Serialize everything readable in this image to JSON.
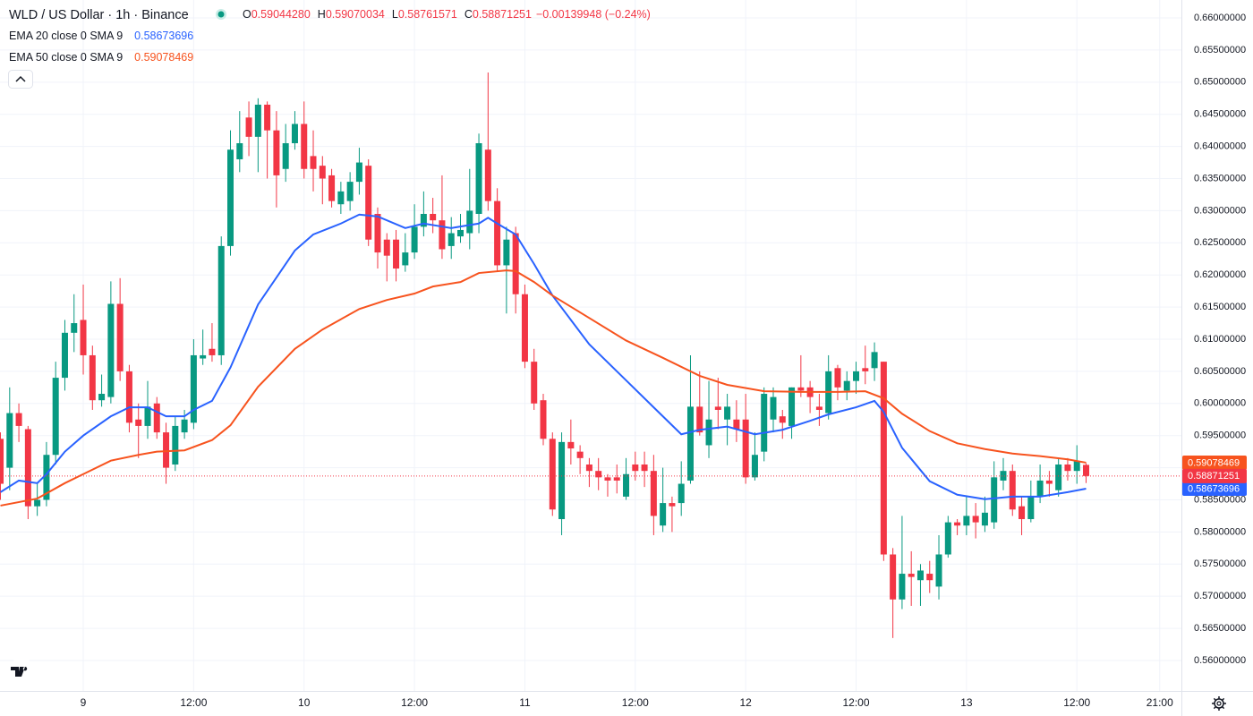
{
  "chart_data": {
    "type": "candlestick",
    "title": "WLD / US Dollar · 1h · Binance",
    "ohlc_readout": [
      {
        "key": "O",
        "text": "0.59044280"
      },
      {
        "key": "H",
        "text": "0.59070034"
      },
      {
        "key": "L",
        "text": "0.58761571"
      },
      {
        "key": "C",
        "text": "0.58871251"
      }
    ],
    "change": "−0.00139948 (−0.24%)",
    "candles": {
      "up_color": "#089981",
      "down_color": "#f23645",
      "last_close_label": "0.58871251",
      "x": [
        -9,
        -8,
        -7,
        -6,
        -5,
        -4,
        -3,
        -2,
        -1,
        0,
        1,
        2,
        3,
        4,
        5,
        6,
        7,
        8,
        9,
        10,
        11,
        12,
        13,
        14,
        15,
        16,
        17,
        18,
        19,
        20,
        21,
        22,
        23,
        24,
        25,
        26,
        27,
        28,
        29,
        30,
        31,
        32,
        33,
        34,
        35,
        36,
        37,
        38,
        39,
        40,
        41,
        42,
        43,
        44,
        45,
        46,
        47,
        48,
        49,
        50,
        51,
        52,
        53,
        54,
        55,
        56,
        57,
        58,
        59,
        60,
        61,
        62,
        63,
        64,
        65,
        66,
        67,
        68,
        69,
        70,
        71,
        72,
        73,
        74,
        75,
        76,
        77,
        78,
        79,
        80,
        81,
        82,
        83,
        84,
        85,
        86,
        87,
        88,
        89,
        90,
        91,
        92,
        93,
        94,
        95,
        96,
        97,
        98,
        99,
        100,
        101,
        102,
        103,
        104,
        105,
        106,
        107,
        108,
        109
      ],
      "open": [
        0.5945,
        0.59,
        0.5985,
        0.596,
        0.584,
        0.585,
        0.592,
        0.604,
        0.611,
        0.613,
        0.6075,
        0.6005,
        0.601,
        0.6155,
        0.605,
        0.5975,
        0.5965,
        0.6,
        0.5955,
        0.5905,
        0.5955,
        0.597,
        0.607,
        0.6085,
        0.6075,
        0.6245,
        0.638,
        0.6445,
        0.6415,
        0.6465,
        0.6425,
        0.6365,
        0.6405,
        0.6435,
        0.6385,
        0.637,
        0.6355,
        0.631,
        0.6315,
        0.6345,
        0.637,
        0.6295,
        0.6255,
        0.6255,
        0.6215,
        0.6235,
        0.6275,
        0.6295,
        0.6285,
        0.6245,
        0.626,
        0.6265,
        0.6295,
        0.6395,
        0.6315,
        0.6215,
        0.6265,
        0.617,
        0.6065,
        0.6005,
        0.5945,
        0.582,
        0.594,
        0.5925,
        0.5905,
        0.5895,
        0.5885,
        0.5885,
        0.5855,
        0.5905,
        0.5905,
        0.5895,
        0.581,
        0.5845,
        0.5845,
        0.588,
        0.5995,
        0.5935,
        0.5995,
        0.5975,
        0.5975,
        0.5975,
        0.5885,
        0.5925,
        0.5975,
        0.598,
        0.5965,
        0.6025,
        0.6025,
        0.5995,
        0.5985,
        0.6055,
        0.602,
        0.6035,
        0.6055,
        0.6055,
        0.6065,
        0.5765,
        0.5695,
        0.5735,
        0.5725,
        0.5735,
        0.5715,
        0.5765,
        0.5815,
        0.581,
        0.5825,
        0.581,
        0.5815,
        0.588,
        0.5895,
        0.584,
        0.582,
        0.5855,
        0.588,
        0.5865,
        0.5905,
        0.5895,
        0.5904428
      ],
      "high": [
        0.5955,
        0.6025,
        0.6,
        0.5965,
        0.5875,
        0.594,
        0.6065,
        0.613,
        0.617,
        0.6185,
        0.609,
        0.6045,
        0.619,
        0.6195,
        0.606,
        0.6,
        0.6035,
        0.601,
        0.597,
        0.598,
        0.599,
        0.61,
        0.6115,
        0.6125,
        0.626,
        0.6425,
        0.6455,
        0.647,
        0.6475,
        0.647,
        0.6455,
        0.6435,
        0.6455,
        0.647,
        0.6425,
        0.6385,
        0.6365,
        0.6345,
        0.636,
        0.6398,
        0.638,
        0.6305,
        0.6265,
        0.627,
        0.6265,
        0.631,
        0.633,
        0.632,
        0.6355,
        0.629,
        0.6295,
        0.6365,
        0.642,
        0.6515,
        0.6335,
        0.6275,
        0.6275,
        0.6185,
        0.6085,
        0.6015,
        0.5955,
        0.5955,
        0.5975,
        0.5935,
        0.5915,
        0.5915,
        0.589,
        0.5905,
        0.5915,
        0.5925,
        0.5925,
        0.592,
        0.59,
        0.5855,
        0.591,
        0.6075,
        0.605,
        0.6035,
        0.604,
        0.6015,
        0.6005,
        0.6015,
        0.5955,
        0.6025,
        0.6025,
        0.599,
        0.6025,
        0.6075,
        0.6035,
        0.6015,
        0.6075,
        0.606,
        0.605,
        0.6065,
        0.609,
        0.6095,
        0.6065,
        0.5775,
        0.5825,
        0.577,
        0.575,
        0.5755,
        0.5795,
        0.5825,
        0.582,
        0.5855,
        0.5845,
        0.5855,
        0.591,
        0.5915,
        0.5905,
        0.5855,
        0.588,
        0.5905,
        0.5895,
        0.5915,
        0.5915,
        0.5935,
        0.59070034
      ],
      "low": [
        0.585,
        0.5865,
        0.594,
        0.582,
        0.5825,
        0.584,
        0.5905,
        0.602,
        0.608,
        0.6045,
        0.599,
        0.5995,
        0.6,
        0.6035,
        0.5955,
        0.5915,
        0.5945,
        0.5945,
        0.5875,
        0.5895,
        0.5945,
        0.596,
        0.606,
        0.6065,
        0.606,
        0.623,
        0.636,
        0.6385,
        0.636,
        0.635,
        0.6305,
        0.6345,
        0.6395,
        0.635,
        0.633,
        0.631,
        0.6305,
        0.6295,
        0.63,
        0.6325,
        0.6245,
        0.621,
        0.619,
        0.619,
        0.6205,
        0.6225,
        0.626,
        0.6265,
        0.6225,
        0.6225,
        0.625,
        0.624,
        0.6265,
        0.63,
        0.6205,
        0.614,
        0.614,
        0.6055,
        0.599,
        0.5935,
        0.5825,
        0.5795,
        0.5905,
        0.589,
        0.587,
        0.5865,
        0.5855,
        0.586,
        0.585,
        0.588,
        0.587,
        0.5795,
        0.58,
        0.58,
        0.5825,
        0.5875,
        0.595,
        0.5915,
        0.596,
        0.5935,
        0.594,
        0.5875,
        0.588,
        0.591,
        0.5955,
        0.5945,
        0.5945,
        0.601,
        0.5985,
        0.5965,
        0.5975,
        0.6005,
        0.6005,
        0.6015,
        0.603,
        0.6035,
        0.5755,
        0.5635,
        0.568,
        0.5685,
        0.5685,
        0.5705,
        0.5695,
        0.576,
        0.5795,
        0.5795,
        0.579,
        0.58,
        0.5805,
        0.5865,
        0.5825,
        0.5795,
        0.5815,
        0.5845,
        0.5855,
        0.5855,
        0.588,
        0.5875,
        0.58761571
      ],
      "close": [
        0.5875,
        0.5985,
        0.5965,
        0.584,
        0.585,
        0.592,
        0.604,
        0.611,
        0.6125,
        0.6075,
        0.6005,
        0.6015,
        0.6155,
        0.605,
        0.597,
        0.5965,
        0.5995,
        0.5955,
        0.59,
        0.5965,
        0.5975,
        0.6075,
        0.6075,
        0.6075,
        0.6245,
        0.6395,
        0.6405,
        0.6415,
        0.6465,
        0.6425,
        0.6355,
        0.6405,
        0.6435,
        0.6365,
        0.6365,
        0.635,
        0.6315,
        0.633,
        0.6345,
        0.6375,
        0.6255,
        0.6235,
        0.623,
        0.621,
        0.6235,
        0.6275,
        0.6295,
        0.6285,
        0.624,
        0.6265,
        0.627,
        0.63,
        0.6405,
        0.6315,
        0.6215,
        0.6255,
        0.617,
        0.6065,
        0.6,
        0.5945,
        0.5835,
        0.594,
        0.593,
        0.5915,
        0.5895,
        0.5885,
        0.588,
        0.588,
        0.589,
        0.5895,
        0.5895,
        0.5825,
        0.5845,
        0.584,
        0.5875,
        0.5995,
        0.5955,
        0.5975,
        0.599,
        0.5995,
        0.596,
        0.5885,
        0.592,
        0.6015,
        0.601,
        0.597,
        0.6025,
        0.602,
        0.601,
        0.599,
        0.605,
        0.6025,
        0.6035,
        0.605,
        0.605,
        0.608,
        0.5765,
        0.5695,
        0.5735,
        0.573,
        0.574,
        0.5725,
        0.5765,
        0.5815,
        0.581,
        0.5825,
        0.5815,
        0.583,
        0.5885,
        0.5895,
        0.5835,
        0.582,
        0.5855,
        0.588,
        0.5875,
        0.5905,
        0.5895,
        0.591,
        0.58871251
      ]
    },
    "series": [
      {
        "name": "EMA 20 close 0 SMA 9",
        "color": "#2962ff",
        "last_value_label": "0.58673696",
        "x": [
          -9,
          -7,
          -5,
          -4,
          -2,
          0,
          3,
          5,
          7,
          9,
          11,
          12,
          14,
          16,
          19,
          23,
          25,
          28,
          30,
          32,
          35,
          37,
          40,
          43,
          44,
          45,
          47,
          49,
          51,
          55,
          59,
          62,
          65,
          67,
          70,
          73,
          76,
          79,
          81,
          84,
          86,
          87,
          89,
          92,
          95,
          98,
          101,
          104,
          107,
          109
        ],
        "values": [
          0.5862,
          0.588,
          0.5876,
          0.589,
          0.5925,
          0.595,
          0.598,
          0.5994,
          0.5994,
          0.598,
          0.598,
          0.599,
          0.6004,
          0.6056,
          0.6154,
          0.6238,
          0.6263,
          0.628,
          0.6294,
          0.6291,
          0.6273,
          0.628,
          0.6273,
          0.628,
          0.6289,
          0.628,
          0.6263,
          0.6217,
          0.6168,
          0.6092,
          0.6036,
          0.5994,
          0.5952,
          0.5959,
          0.5964,
          0.5952,
          0.5959,
          0.5973,
          0.5983,
          0.5994,
          0.6004,
          0.5987,
          0.5931,
          0.5879,
          0.5858,
          0.5851,
          0.5855,
          0.5855,
          0.5862,
          0.58673696
        ]
      },
      {
        "name": "EMA 50 close 0 SMA 9",
        "color": "#f7531e",
        "last_value_label": "0.59078469",
        "x": [
          -9,
          -5,
          -2,
          0,
          3,
          6,
          8,
          11,
          14,
          16,
          19,
          23,
          26,
          30,
          33,
          36,
          38,
          41,
          43,
          46,
          47,
          49,
          51,
          55,
          59,
          63,
          67,
          70,
          74,
          78,
          82,
          85,
          87,
          89,
          92,
          95,
          98,
          101,
          104,
          107,
          109
        ],
        "values": [
          0.5841,
          0.5852,
          0.5876,
          0.589,
          0.5911,
          0.592,
          0.5925,
          0.5927,
          0.5943,
          0.5966,
          0.6026,
          0.6085,
          0.6115,
          0.6147,
          0.6161,
          0.6171,
          0.6182,
          0.6189,
          0.6203,
          0.6207,
          0.6206,
          0.6189,
          0.6168,
          0.6133,
          0.6098,
          0.6071,
          0.6043,
          0.6029,
          0.6019,
          0.6018,
          0.6018,
          0.6019,
          0.6008,
          0.5984,
          0.5957,
          0.5938,
          0.5929,
          0.5922,
          0.5918,
          0.5913,
          0.59078469
        ]
      }
    ],
    "xlim": [
      -9.05,
      119.36
    ],
    "xticks": [
      {
        "value": 0,
        "label": "9"
      },
      {
        "value": 12,
        "label": "12:00"
      },
      {
        "value": 24,
        "label": "10"
      },
      {
        "value": 36,
        "label": "12:00"
      },
      {
        "value": 48,
        "label": "11"
      },
      {
        "value": 60,
        "label": "12:00"
      },
      {
        "value": 72,
        "label": "12"
      },
      {
        "value": 84,
        "label": "12:00"
      },
      {
        "value": 96,
        "label": "13"
      },
      {
        "value": 108,
        "label": "12:00"
      },
      {
        "value": 117,
        "label": "21:00"
      }
    ],
    "ylim": [
      0.55526,
      0.66279
    ],
    "yticks": [
      {
        "value": 0.56,
        "label": "0.56000000"
      },
      {
        "value": 0.565,
        "label": "0.56500000"
      },
      {
        "value": 0.57,
        "label": "0.57000000"
      },
      {
        "value": 0.575,
        "label": "0.57500000"
      },
      {
        "value": 0.58,
        "label": "0.58000000"
      },
      {
        "value": 0.585,
        "label": "0.58500000"
      },
      {
        "value": 0.59,
        "label": "0.59000000"
      },
      {
        "value": 0.595,
        "label": "0.59500000"
      },
      {
        "value": 0.6,
        "label": "0.60000000"
      },
      {
        "value": 0.605,
        "label": "0.60500000"
      },
      {
        "value": 0.61,
        "label": "0.61000000"
      },
      {
        "value": 0.615,
        "label": "0.61500000"
      },
      {
        "value": 0.62,
        "label": "0.62000000"
      },
      {
        "value": 0.625,
        "label": "0.62500000"
      },
      {
        "value": 0.63,
        "label": "0.63000000"
      },
      {
        "value": 0.635,
        "label": "0.63500000"
      },
      {
        "value": 0.64,
        "label": "0.64000000"
      },
      {
        "value": 0.645,
        "label": "0.64500000"
      },
      {
        "value": 0.65,
        "label": "0.65000000"
      },
      {
        "value": 0.655,
        "label": "0.65500000"
      },
      {
        "value": 0.66,
        "label": "0.66000000"
      }
    ],
    "grid": true
  }
}
